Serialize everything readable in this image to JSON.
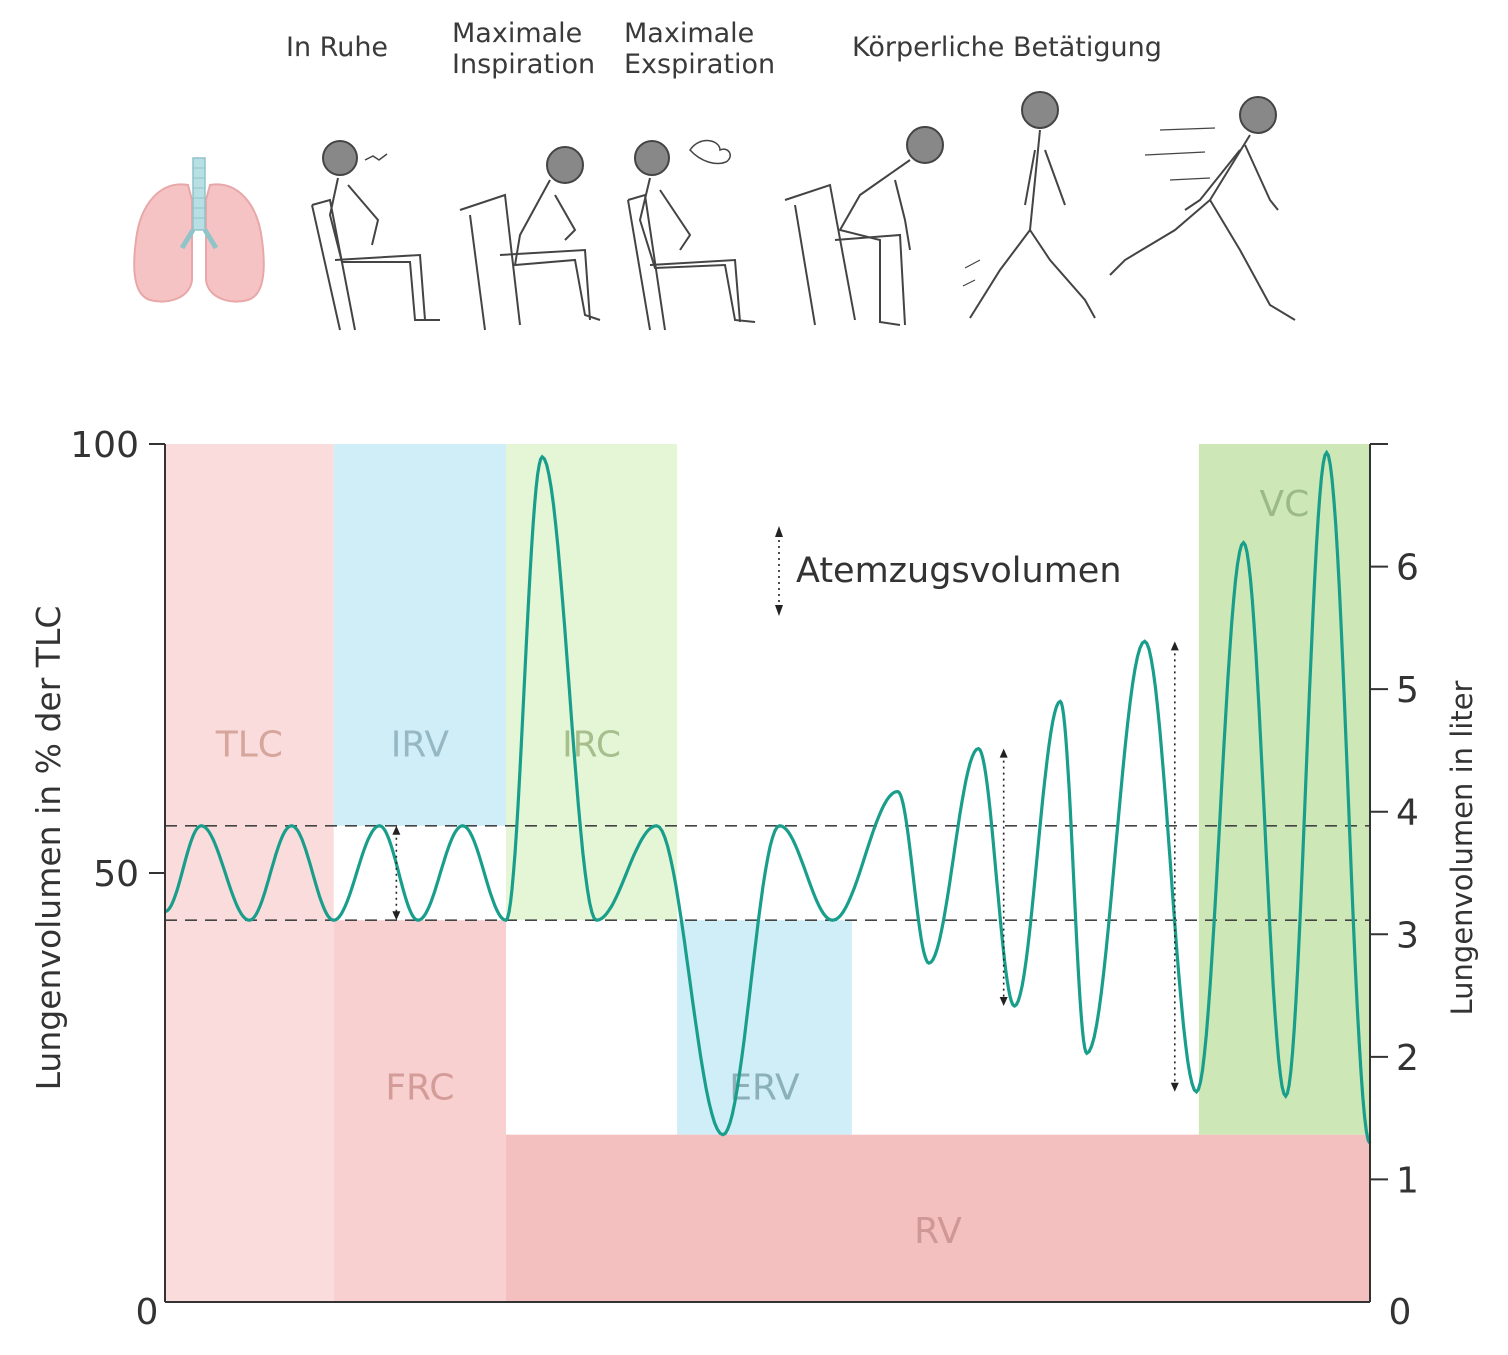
{
  "header": {
    "phases": [
      {
        "label": "In Ruhe"
      },
      {
        "label": "Maximale\nInspiration"
      },
      {
        "label": "Maximale\nExspiration"
      },
      {
        "label": "Körperliche Betätigung"
      }
    ]
  },
  "illustration_icons": [
    "lungs-icon",
    "sitting-person-icon",
    "inhaling-person-icon",
    "exhaling-person-icon",
    "standing-up-person-icon",
    "walking-person-icon",
    "running-person-icon"
  ],
  "colors": {
    "curve": "#1a9e8c",
    "tlc_region": "#fbdcdc",
    "irv_region": "#cfeef8",
    "irc_region": "#e5f6d6",
    "frc_region": "#f8d0d0",
    "rv_region": "#f4bfbf",
    "erv_region": "#cfeef8",
    "vc_region": "#cde8b6",
    "tlc_text": "#d6a59c",
    "irv_text": "#96b8c4",
    "irc_text": "#a6bf8c",
    "frc_text": "#d49c98",
    "rv_text": "#cf9896",
    "erv_text": "#8cb0b8",
    "vc_text": "#9cba88"
  },
  "chart_data": {
    "type": "line",
    "ylabel_left": "Lungenvolumen in % der TLC",
    "ylabel_right": "Lungenvolumen in liter",
    "left_ticks": [
      "100",
      "50",
      "0"
    ],
    "left_tick_values": [
      100,
      50,
      0
    ],
    "right_ticks": [
      "0",
      "1",
      "2",
      "3",
      "4",
      "5",
      "6"
    ],
    "right_tick_values": [
      0,
      1,
      2,
      3,
      4,
      5,
      6
    ],
    "ylim_percent": [
      0,
      100
    ],
    "ylim_liter": [
      0,
      7
    ],
    "x_range": [
      0,
      100
    ],
    "reference_lines_percent": [
      55.5,
      44.5
    ],
    "legend_entry": "Atemzugsvolumen",
    "regions": [
      {
        "label": "TLC",
        "x": [
          0,
          14
        ],
        "y": [
          0,
          100
        ],
        "color_key": "tlc_region",
        "text_key": "tlc_text"
      },
      {
        "label": "IRV",
        "x": [
          14,
          28.3
        ],
        "y": [
          55.5,
          100
        ],
        "color_key": "irv_region",
        "text_key": "irv_text"
      },
      {
        "label": "IRC",
        "x": [
          28.3,
          42.5
        ],
        "y": [
          44.5,
          100
        ],
        "color_key": "irc_region",
        "text_key": "irc_text"
      },
      {
        "label": "FRC",
        "x": [
          14,
          28.3
        ],
        "y": [
          0,
          44.5
        ],
        "color_key": "frc_region",
        "text_key": "frc_text"
      },
      {
        "label": "ERV",
        "x": [
          42.5,
          57
        ],
        "y": [
          19.5,
          44.5
        ],
        "color_key": "erv_region",
        "text_key": "erv_text"
      },
      {
        "label": "RV",
        "x": [
          28.3,
          100
        ],
        "y": [
          0,
          19.5
        ],
        "color_key": "rv_region",
        "text_key": "rv_text"
      },
      {
        "label": "VC",
        "x": [
          85.8,
          100
        ],
        "y": [
          19.5,
          100
        ],
        "color_key": "vc_region",
        "text_key": "vc_text"
      }
    ],
    "curve_x": [
      0,
      3,
      7,
      10.5,
      14,
      17.8,
      21,
      24.7,
      28.3,
      31.3,
      35.8,
      40.8,
      46.3,
      51,
      55.4,
      60.8,
      63.4,
      67.5,
      70.5,
      74.3,
      76.5,
      81.3,
      85.6,
      89.5,
      93,
      96.4,
      100
    ],
    "curve_y": [
      45.5,
      55.5,
      44.5,
      55.5,
      44.5,
      55.5,
      44.5,
      55.5,
      44.5,
      98.5,
      44.5,
      55.5,
      19.5,
      55.5,
      44.5,
      59.5,
      39.5,
      64.5,
      34.5,
      70,
      29,
      77,
      24.5,
      88.5,
      24,
      99,
      18.5
    ],
    "tidal_markers": [
      {
        "x": 19.2,
        "y": [
          44.5,
          55.5
        ]
      },
      {
        "x": 69.6,
        "y": [
          34.5,
          64.5
        ]
      },
      {
        "x": 83.8,
        "y": [
          24.5,
          77
        ]
      }
    ]
  }
}
